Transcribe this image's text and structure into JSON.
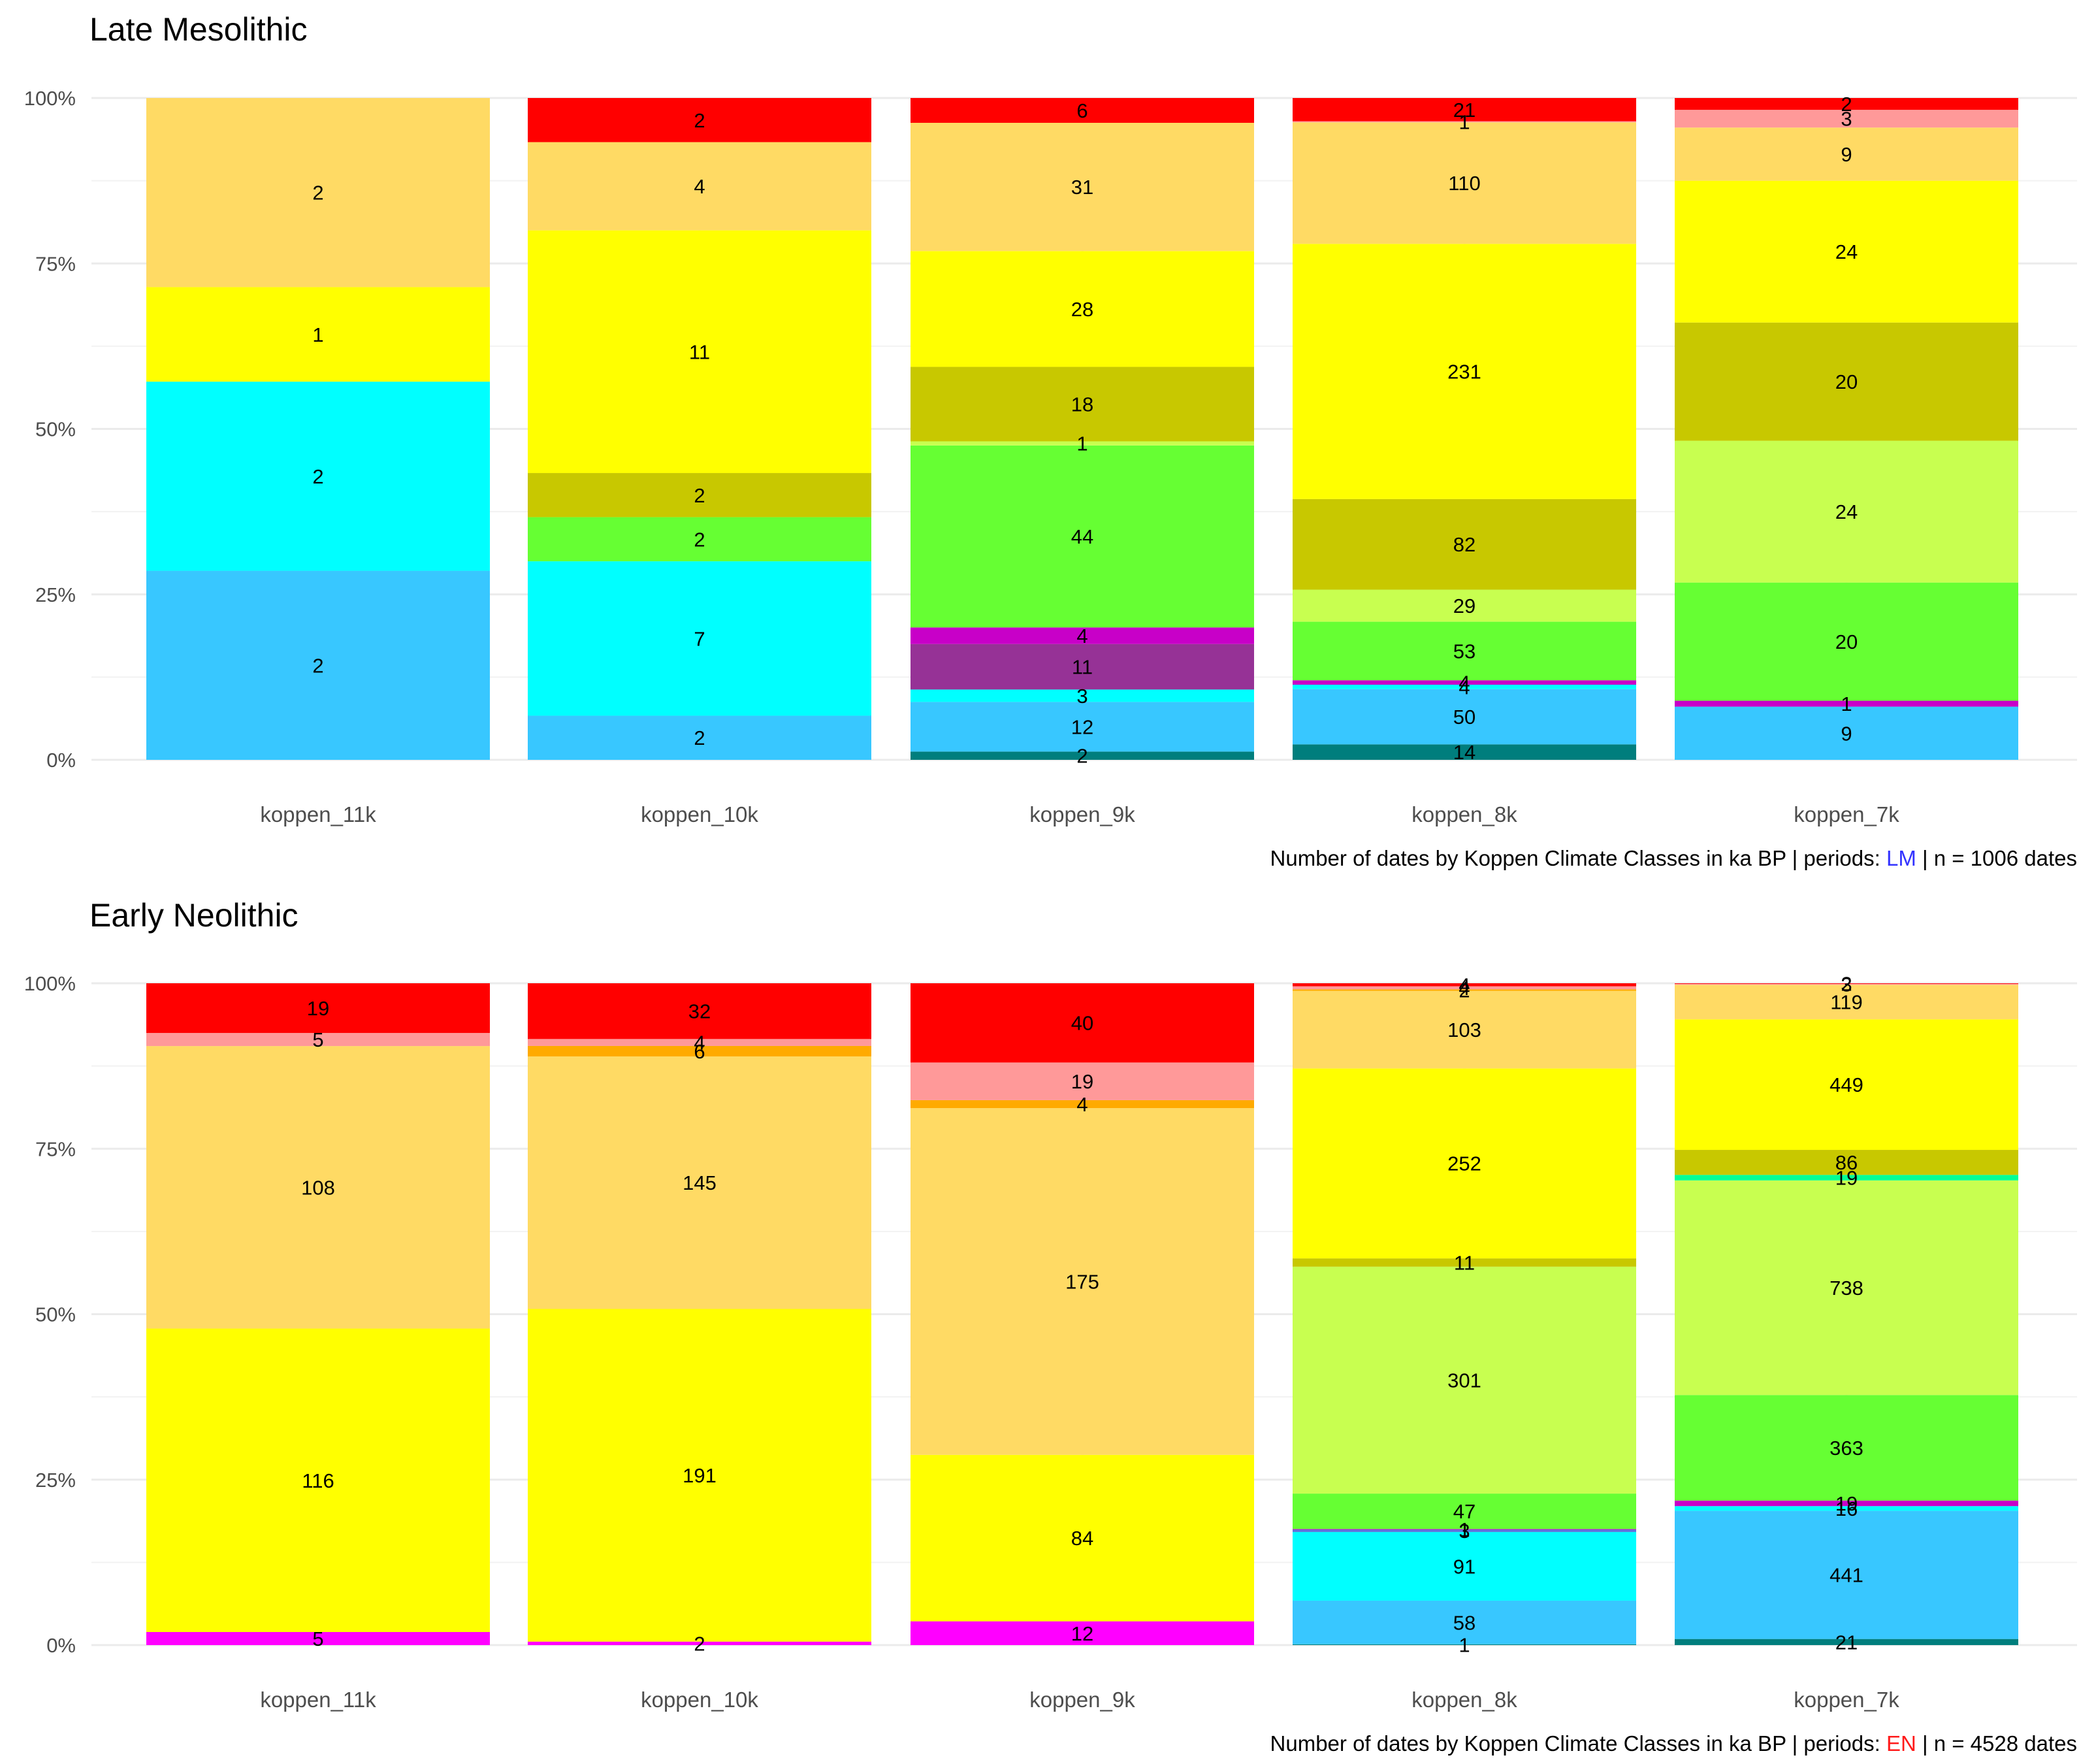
{
  "colors": {
    "Af": "#960000",
    "Am": "#FF0000",
    "As": "#FF9999",
    "Aw": "#FFCCCC",
    "BWh": "#FFCC00",
    "BWk": "#FFFF64",
    "BSh": "#CC8D14",
    "BSk": "#FFAA00",
    "Csa": "#FFDA64",
    "Csb": "#FFFF00",
    "Csc": "#FFFF96",
    "Cwa": "#00FF96",
    "Cwb": "#96FF96",
    "Cwc": "#C8C800",
    "Cfa": "#C8FF50",
    "Cfb": "#66FF33",
    "Cfc": "#32C800",
    "Dsa": "#FF00FF",
    "Dsb": "#C800C8",
    "Dsc": "#963296",
    "Dwa": "#AAAFFF",
    "Dwb": "#5A78DC",
    "Dwc": "#4B50B4",
    "Dwd": "#320087",
    "Dfa": "#00FFFF",
    "Dfb": "#38C7FF",
    "Dfc": "#007E7D",
    "Dfd": "#00455E",
    "ET": "#B2B2B2",
    "EF": "#686868"
  },
  "chart_data": [
    {
      "type": "bar",
      "stacked": "percent",
      "title": "Late Mesolithic",
      "categories": [
        "koppen_11k",
        "koppen_10k",
        "koppen_9k",
        "koppen_8k",
        "koppen_7k"
      ],
      "y_ticks": [
        "0%",
        "25%",
        "50%",
        "75%",
        "100%"
      ],
      "ylim": [
        0,
        1
      ],
      "caption": {
        "prefix": "Number of dates by Koppen Climate Classes  in ka BP | periods: ",
        "period": "LM",
        "period_color": "#3333FF",
        "suffix": " | n = 1006 dates"
      },
      "bars": [
        {
          "segments": [
            {
              "cls": "Dfb",
              "value": 2
            },
            {
              "cls": "Dfa",
              "value": 2
            },
            {
              "cls": "Csb",
              "value": 1
            },
            {
              "cls": "Csa",
              "value": 2
            }
          ]
        },
        {
          "segments": [
            {
              "cls": "Dfb",
              "value": 2
            },
            {
              "cls": "Dfa",
              "value": 7
            },
            {
              "cls": "Cfb",
              "value": 2
            },
            {
              "cls": "Cwc",
              "value": 2
            },
            {
              "cls": "Csb",
              "value": 11
            },
            {
              "cls": "Csa",
              "value": 4
            },
            {
              "cls": "Am",
              "value": 2
            }
          ]
        },
        {
          "segments": [
            {
              "cls": "Dfc",
              "value": 2
            },
            {
              "cls": "Dfb",
              "value": 12
            },
            {
              "cls": "Dfa",
              "value": 3
            },
            {
              "cls": "Dsc",
              "value": 11
            },
            {
              "cls": "Dsb",
              "value": 4
            },
            {
              "cls": "Cfb",
              "value": 44
            },
            {
              "cls": "Cfa",
              "value": 1
            },
            {
              "cls": "Cwc",
              "value": 18
            },
            {
              "cls": "Csb",
              "value": 28
            },
            {
              "cls": "Csa",
              "value": 31
            },
            {
              "cls": "Am",
              "value": 6
            }
          ]
        },
        {
          "segments": [
            {
              "cls": "Dfc",
              "value": 14
            },
            {
              "cls": "Dfb",
              "value": 50
            },
            {
              "cls": "Dfa",
              "value": 4
            },
            {
              "cls": "Dsb",
              "value": 4
            },
            {
              "cls": "Cfb",
              "value": 53
            },
            {
              "cls": "Cfa",
              "value": 29
            },
            {
              "cls": "Cwc",
              "value": 82
            },
            {
              "cls": "Csb",
              "value": 231
            },
            {
              "cls": "Csa",
              "value": 110
            },
            {
              "cls": "As",
              "value": 1
            },
            {
              "cls": "Am",
              "value": 21
            }
          ]
        },
        {
          "segments": [
            {
              "cls": "Dfb",
              "value": 9
            },
            {
              "cls": "Dsb",
              "value": 1
            },
            {
              "cls": "Cfb",
              "value": 20
            },
            {
              "cls": "Cfa",
              "value": 24
            },
            {
              "cls": "Cwc",
              "value": 20
            },
            {
              "cls": "Csb",
              "value": 24
            },
            {
              "cls": "Csa",
              "value": 9
            },
            {
              "cls": "As",
              "value": 3
            },
            {
              "cls": "Am",
              "value": 2
            }
          ]
        }
      ]
    },
    {
      "type": "bar",
      "stacked": "percent",
      "title": "Early Neolithic",
      "categories": [
        "koppen_11k",
        "koppen_10k",
        "koppen_9k",
        "koppen_8k",
        "koppen_7k"
      ],
      "y_ticks": [
        "0%",
        "25%",
        "50%",
        "75%",
        "100%"
      ],
      "ylim": [
        0,
        1
      ],
      "caption": {
        "prefix": "Number of dates by Koppen Climate Classes  in ka BP | periods: ",
        "period": "EN",
        "period_color": "#FF1A1A",
        "suffix": " | n = 4528 dates"
      },
      "bars": [
        {
          "segments": [
            {
              "cls": "Dsa",
              "value": 5
            },
            {
              "cls": "Csb",
              "value": 116
            },
            {
              "cls": "Csa",
              "value": 108
            },
            {
              "cls": "As",
              "value": 5
            },
            {
              "cls": "Am",
              "value": 19
            }
          ]
        },
        {
          "segments": [
            {
              "cls": "Dsa",
              "value": 2
            },
            {
              "cls": "Csb",
              "value": 191
            },
            {
              "cls": "Csa",
              "value": 145
            },
            {
              "cls": "BSk",
              "value": 6
            },
            {
              "cls": "As",
              "value": 4
            },
            {
              "cls": "Am",
              "value": 32
            }
          ]
        },
        {
          "segments": [
            {
              "cls": "Dsa",
              "value": 12
            },
            {
              "cls": "Csb",
              "value": 84
            },
            {
              "cls": "Csa",
              "value": 175
            },
            {
              "cls": "BSk",
              "value": 4
            },
            {
              "cls": "As",
              "value": 19
            },
            {
              "cls": "Am",
              "value": 40
            }
          ]
        },
        {
          "segments": [
            {
              "cls": "Dfc",
              "value": 1
            },
            {
              "cls": "Dfb",
              "value": 58
            },
            {
              "cls": "Dfa",
              "value": 91
            },
            {
              "cls": "Dwb",
              "value": 3
            },
            {
              "cls": "Dsb",
              "value": 1
            },
            {
              "cls": "Cfb",
              "value": 47
            },
            {
              "cls": "Cfa",
              "value": 301
            },
            {
              "cls": "Cwc",
              "value": 11
            },
            {
              "cls": "Csb",
              "value": 252
            },
            {
              "cls": "Csa",
              "value": 103
            },
            {
              "cls": "BSk",
              "value": 2
            },
            {
              "cls": "As",
              "value": 4
            },
            {
              "cls": "Am",
              "value": 4
            }
          ]
        },
        {
          "segments": [
            {
              "cls": "Dfc",
              "value": 21
            },
            {
              "cls": "Dfb",
              "value": 441
            },
            {
              "cls": "Dfa",
              "value": 16
            },
            {
              "cls": "Dsb",
              "value": 19
            },
            {
              "cls": "Cfb",
              "value": 363
            },
            {
              "cls": "Cfa",
              "value": 738
            },
            {
              "cls": "Cwa",
              "value": 19
            },
            {
              "cls": "Cwc",
              "value": 86
            },
            {
              "cls": "Csb",
              "value": 449
            },
            {
              "cls": "Csa",
              "value": 119
            },
            {
              "cls": "As",
              "value": 3
            },
            {
              "cls": "Am",
              "value": 2
            }
          ]
        }
      ]
    }
  ]
}
